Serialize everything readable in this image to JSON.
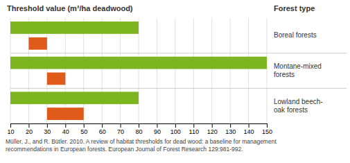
{
  "chart_data": {
    "type": "bar",
    "orientation": "horizontal",
    "title": "Threshold value (m³/ha deadwood)",
    "ylabel": "Forest type",
    "categories": [
      "Boreal forests",
      "Montane-mixed\nforests",
      "Lowland beech-\noak forests"
    ],
    "series": [
      {
        "color": "#7db520",
        "left": [
          10,
          10,
          10
        ],
        "values": [
          70,
          140,
          70
        ]
      },
      {
        "color": "#e05a1a",
        "left": [
          20,
          30,
          30
        ],
        "values": [
          10,
          10,
          20
        ]
      }
    ],
    "xlim": [
      10,
      150
    ],
    "xticks": [
      10,
      20,
      30,
      40,
      50,
      60,
      70,
      80,
      90,
      100,
      110,
      120,
      130,
      140,
      150
    ],
    "grid": true,
    "annotations": [
      "Müller, J., and R. Bütler. 2010. A review of habitat thresholds for dead wood: a baseline for management\nrecommendations in European forests. European Journal of Forest Research 129:981-992."
    ]
  }
}
